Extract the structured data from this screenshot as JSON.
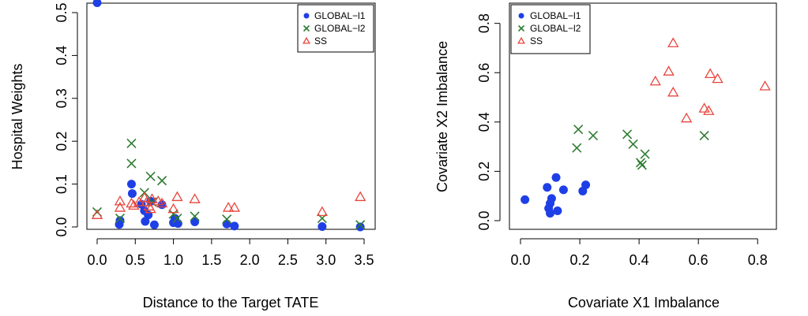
{
  "chart_data": [
    {
      "type": "scatter",
      "xlabel": "Distance to the Target TATE",
      "ylabel": "Hospital Weights",
      "xlim": [
        0,
        3.5
      ],
      "ylim": [
        0,
        0.5
      ],
      "xticks": [
        "0.0",
        "0.5",
        "1.0",
        "1.5",
        "2.0",
        "2.5",
        "3.0",
        "3.5"
      ],
      "yticks": [
        "0.0",
        "0.1",
        "0.2",
        "0.3",
        "0.4",
        "0.5"
      ],
      "legend_position": "top-right",
      "grid": false,
      "series": [
        {
          "name": "GLOBAL−l1",
          "marker": "filled-circle",
          "color": "#1f3fe6",
          "points": [
            [
              0.0,
              0.523
            ],
            [
              0.29,
              0.006
            ],
            [
              0.3,
              0.015
            ],
            [
              0.45,
              0.1
            ],
            [
              0.46,
              0.078
            ],
            [
              0.58,
              0.053
            ],
            [
              0.62,
              0.038
            ],
            [
              0.63,
              0.013
            ],
            [
              0.67,
              0.028
            ],
            [
              0.7,
              0.06
            ],
            [
              0.75,
              0.005
            ],
            [
              0.85,
              0.052
            ],
            [
              1.0,
              0.01
            ],
            [
              1.02,
              0.02
            ],
            [
              1.06,
              0.008
            ],
            [
              1.28,
              0.012
            ],
            [
              1.7,
              0.007
            ],
            [
              1.8,
              0.002
            ],
            [
              2.95,
              0.001
            ],
            [
              3.45,
              0.0
            ]
          ]
        },
        {
          "name": "GLOBAL−l2",
          "marker": "cross",
          "color": "#2e7d32",
          "points": [
            [
              0.0,
              0.035
            ],
            [
              0.3,
              0.02
            ],
            [
              0.45,
              0.195
            ],
            [
              0.45,
              0.148
            ],
            [
              0.62,
              0.08
            ],
            [
              0.7,
              0.118
            ],
            [
              0.72,
              0.058
            ],
            [
              0.85,
              0.108
            ],
            [
              1.0,
              0.03
            ],
            [
              1.05,
              0.02
            ],
            [
              1.28,
              0.025
            ],
            [
              1.7,
              0.018
            ],
            [
              2.95,
              0.02
            ],
            [
              3.45,
              0.005
            ]
          ]
        },
        {
          "name": "SS",
          "marker": "open-triangle",
          "color": "#e8453c",
          "points": [
            [
              0.0,
              0.028
            ],
            [
              0.3,
              0.06
            ],
            [
              0.3,
              0.045
            ],
            [
              0.45,
              0.055
            ],
            [
              0.48,
              0.05
            ],
            [
              0.55,
              0.058
            ],
            [
              0.62,
              0.068
            ],
            [
              0.65,
              0.058
            ],
            [
              0.68,
              0.048
            ],
            [
              0.7,
              0.042
            ],
            [
              0.72,
              0.065
            ],
            [
              0.8,
              0.06
            ],
            [
              0.85,
              0.055
            ],
            [
              1.0,
              0.042
            ],
            [
              1.05,
              0.07
            ],
            [
              1.28,
              0.065
            ],
            [
              1.72,
              0.045
            ],
            [
              1.8,
              0.045
            ],
            [
              2.95,
              0.035
            ],
            [
              3.45,
              0.07
            ]
          ]
        }
      ]
    },
    {
      "type": "scatter",
      "xlabel": "Covariate X1 Imbalance",
      "ylabel": "Covariate X2 Imbalance",
      "xlim": [
        0,
        0.85
      ],
      "ylim": [
        0,
        0.85
      ],
      "xticks": [
        "0.0",
        "0.2",
        "0.4",
        "0.6",
        "0.8"
      ],
      "yticks": [
        "0.0",
        "0.2",
        "0.4",
        "0.6",
        "0.8"
      ],
      "legend_position": "top-left",
      "grid": false,
      "series": [
        {
          "name": "GLOBAL−l1",
          "marker": "filled-circle",
          "color": "#1f3fe6",
          "points": [
            [
              0.015,
              0.085
            ],
            [
              0.09,
              0.135
            ],
            [
              0.095,
              0.05
            ],
            [
              0.1,
              0.03
            ],
            [
              0.1,
              0.07
            ],
            [
              0.105,
              0.09
            ],
            [
              0.12,
              0.175
            ],
            [
              0.125,
              0.04
            ],
            [
              0.145,
              0.125
            ],
            [
              0.21,
              0.12
            ],
            [
              0.22,
              0.145
            ]
          ]
        },
        {
          "name": "GLOBAL−l2",
          "marker": "cross",
          "color": "#2e7d32",
          "points": [
            [
              0.19,
              0.295
            ],
            [
              0.195,
              0.37
            ],
            [
              0.245,
              0.345
            ],
            [
              0.36,
              0.35
            ],
            [
              0.38,
              0.31
            ],
            [
              0.405,
              0.235
            ],
            [
              0.41,
              0.225
            ],
            [
              0.42,
              0.27
            ],
            [
              0.62,
              0.345
            ]
          ]
        },
        {
          "name": "SS",
          "marker": "open-triangle",
          "color": "#e8453c",
          "points": [
            [
              0.455,
              0.565
            ],
            [
              0.5,
              0.605
            ],
            [
              0.515,
              0.72
            ],
            [
              0.515,
              0.52
            ],
            [
              0.56,
              0.415
            ],
            [
              0.62,
              0.455
            ],
            [
              0.635,
              0.445
            ],
            [
              0.64,
              0.595
            ],
            [
              0.665,
              0.575
            ],
            [
              0.825,
              0.545
            ]
          ]
        }
      ]
    }
  ]
}
